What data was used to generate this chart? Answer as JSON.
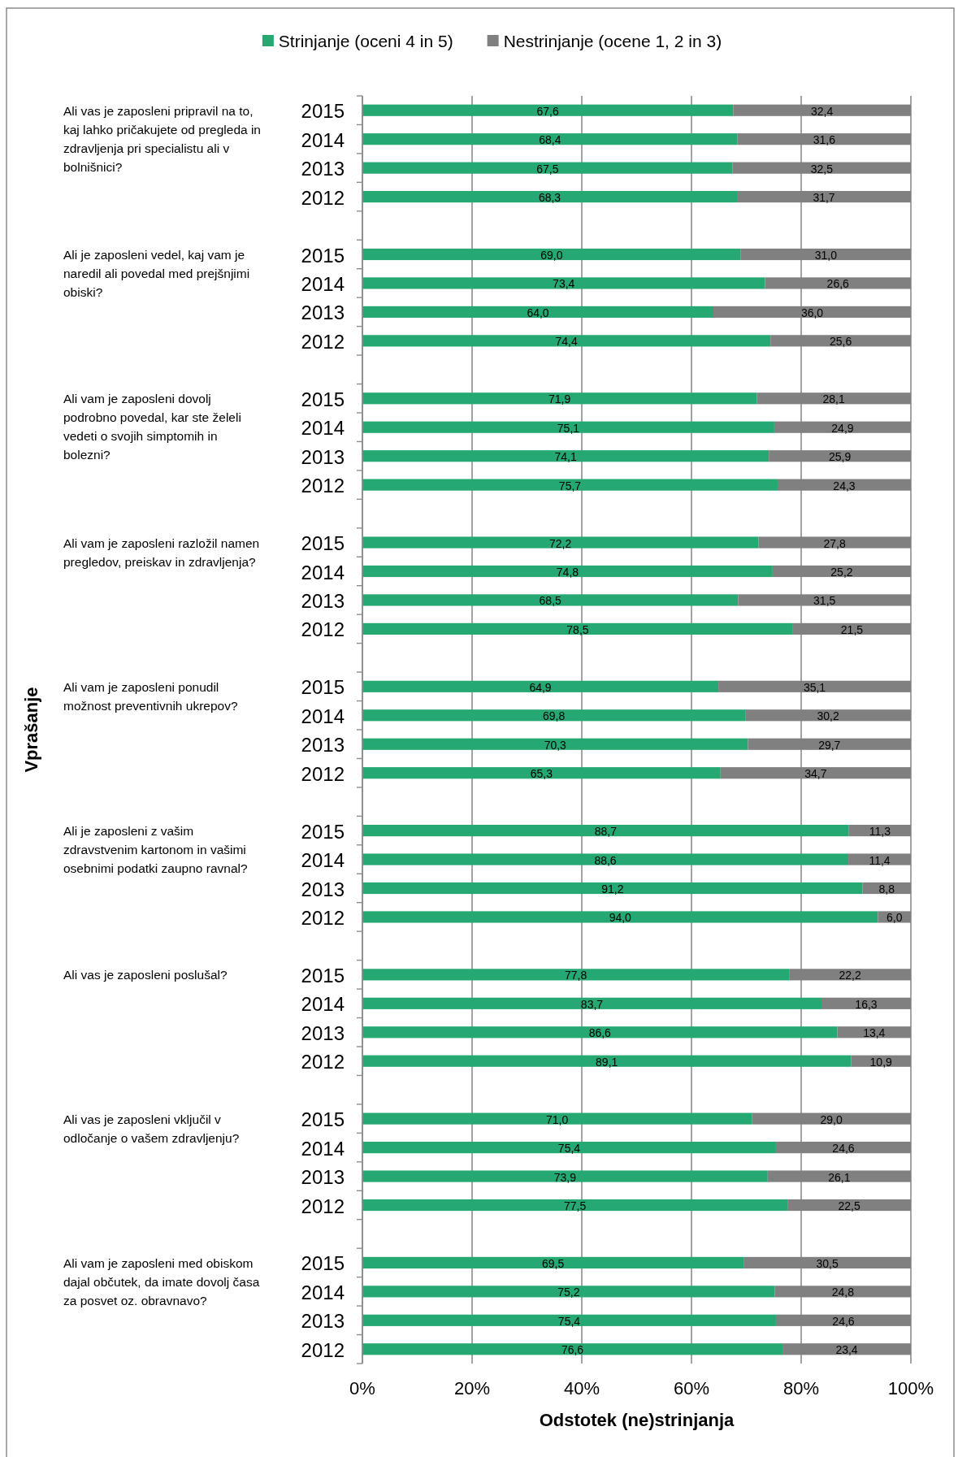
{
  "chart_data": {
    "type": "bar",
    "orientation": "horizontal",
    "stacked": true,
    "categories": [
      "2015",
      "2014",
      "2013",
      "2012",
      null,
      "2015",
      "2014",
      "2013",
      "2012",
      null,
      "2015",
      "2014",
      "2013",
      "2012",
      null,
      "2015",
      "2014",
      "2013",
      "2012",
      null,
      "2015",
      "2014",
      "2013",
      "2012",
      null,
      "2015",
      "2014",
      "2013",
      "2012",
      null,
      "2015",
      "2014",
      "2013",
      "2012",
      null,
      "2015",
      "2014",
      "2013",
      "2012",
      null,
      "2015",
      "2014",
      "2013",
      "2012"
    ],
    "series": [
      {
        "name": "Strinjanje (oceni 4 in 5)",
        "color": "#25a872",
        "values": [
          67.6,
          68.4,
          67.5,
          68.3,
          null,
          69.0,
          73.4,
          64.0,
          74.4,
          null,
          71.9,
          75.1,
          74.1,
          75.7,
          null,
          72.2,
          74.8,
          68.5,
          78.5,
          null,
          64.9,
          69.8,
          70.3,
          65.3,
          null,
          88.7,
          88.6,
          91.2,
          94.0,
          null,
          77.8,
          83.7,
          86.6,
          89.1,
          null,
          71.0,
          75.4,
          73.9,
          77.5,
          null,
          69.5,
          75.2,
          75.4,
          76.6
        ],
        "value_labels": [
          "67,6",
          "68,4",
          "67,5",
          "68,3",
          null,
          "69,0",
          "73,4",
          "64,0",
          "74,4",
          null,
          "71,9",
          "75,1",
          "74,1",
          "75,7",
          null,
          "72,2",
          "74,8",
          "68,5",
          "78,5",
          null,
          "64,9",
          "69,8",
          "70,3",
          "65,3",
          null,
          "88,7",
          "88,6",
          "91,2",
          "94,0",
          null,
          "77,8",
          "83,7",
          "86,6",
          "89,1",
          null,
          "71,0",
          "75,4",
          "73,9",
          "77,5",
          null,
          "69,5",
          "75,2",
          "75,4",
          "76,6"
        ]
      },
      {
        "name": "Nestrinjanje (ocene 1, 2 in 3)",
        "color": "#808080",
        "values": [
          32.4,
          31.6,
          32.5,
          31.7,
          null,
          31.0,
          26.6,
          36.0,
          25.6,
          null,
          28.1,
          24.9,
          25.9,
          24.3,
          null,
          27.8,
          25.2,
          31.5,
          21.5,
          null,
          35.1,
          30.2,
          29.7,
          34.7,
          null,
          11.3,
          11.4,
          8.8,
          6.0,
          null,
          22.2,
          16.3,
          13.4,
          10.9,
          null,
          29.0,
          24.6,
          26.1,
          22.5,
          null,
          30.5,
          24.8,
          24.6,
          23.4
        ],
        "value_labels": [
          "32,4",
          "31,6",
          "32,5",
          "31,7",
          null,
          "31,0",
          "26,6",
          "36,0",
          "25,6",
          null,
          "28,1",
          "24,9",
          "25,9",
          "24,3",
          null,
          "27,8",
          "25,2",
          "31,5",
          "21,5",
          null,
          "35,1",
          "30,2",
          "29,7",
          "34,7",
          null,
          "11,3",
          "11,4",
          "8,8",
          "6,0",
          null,
          "22,2",
          "16,3",
          "13,4",
          "10,9",
          null,
          "29,0",
          "24,6",
          "26,1",
          "22,5",
          null,
          "30,5",
          "24,8",
          "24,6",
          "23,4"
        ]
      }
    ],
    "xlim": [
      0,
      100
    ],
    "xticks": [
      {
        "value": 0,
        "label": "0%"
      },
      {
        "value": 20,
        "label": "20%"
      },
      {
        "value": 40,
        "label": "40%"
      },
      {
        "value": 60,
        "label": "60%"
      },
      {
        "value": 80,
        "label": "80%"
      },
      {
        "value": 100,
        "label": "100%"
      }
    ],
    "xlabel": "Odstotek (ne)strinjanja",
    "grid": "x",
    "legend": "top",
    "annotations": [
      "Ali vas je zaposleni pripravil na to, kaj lahko pričakujete od pregleda in zdravljenja pri specialistu ali v bolnišnici?",
      "Ali je zaposleni vedel, kaj vam je naredil ali povedal med prejšnjimi obiski?",
      "Ali vam je zaposleni dovolj podrobno povedal, kar ste želeli vedeti o svojih simptomih in bolezni?",
      "Ali vam je zaposleni razložil namen pregledov, preiskav in zdravljenja?",
      "Ali vam je zaposleni ponudil možnost preventivnih ukrepov?",
      "Ali je zaposleni z vašim zdravstvenim kartonom in vašimi osebnimi podatki zaupno ravnal?",
      "Ali vas je zaposleni poslušal?",
      "Ali vas je zaposleni vključil v odločanje o vašem zdravljenju?",
      "Ali vam je zaposleni med obiskom dajal občutek, da imate dovolj časa za posvet oz. obravnavo?",
      "Vprašanje"
    ]
  }
}
